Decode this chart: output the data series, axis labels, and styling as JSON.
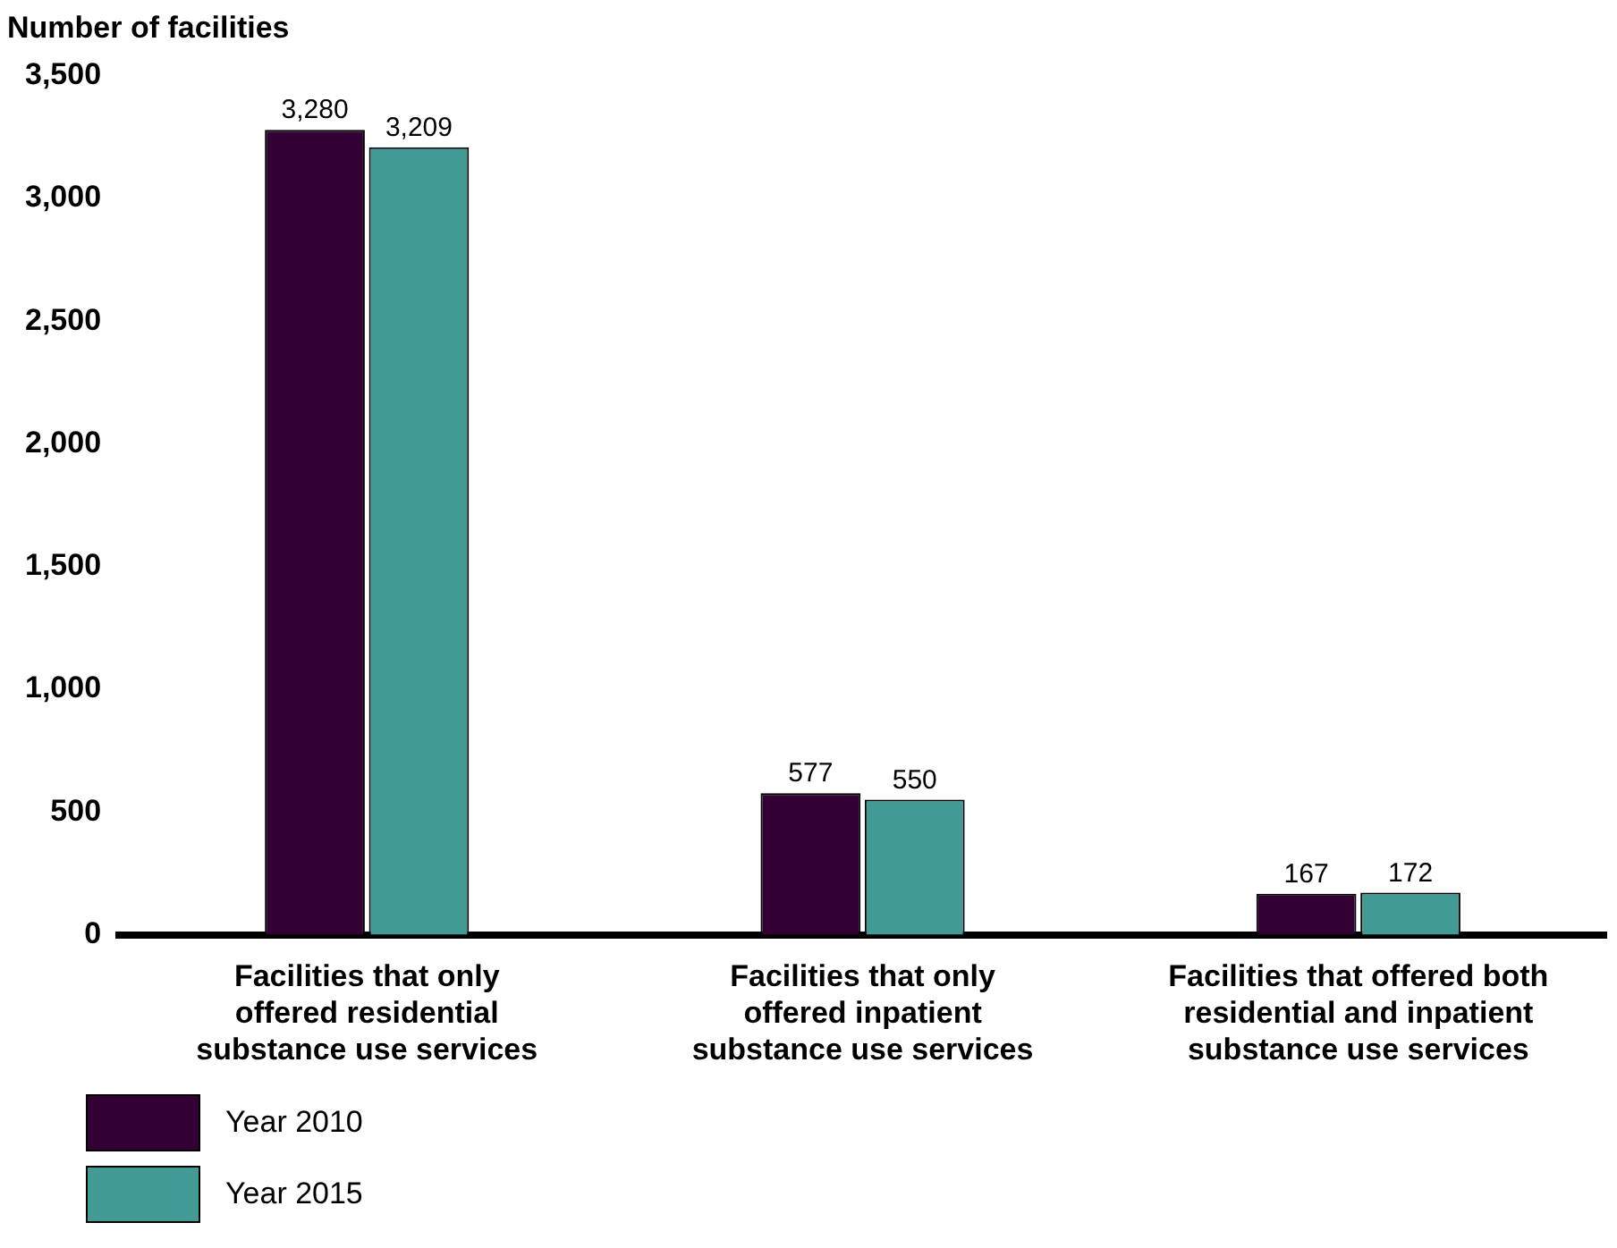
{
  "chart_data": {
    "type": "bar",
    "ylabel": "Number of facilities",
    "categories": [
      "Facilities that only offered residential substance use services",
      "Facilities that only offered inpatient substance use services",
      "Facilities that offered both residential and inpatient substance use services"
    ],
    "series": [
      {
        "name": "Year 2010",
        "color": "#330033",
        "values": [
          3280,
          577,
          167
        ],
        "value_labels": [
          "3,280",
          "577",
          "167"
        ]
      },
      {
        "name": "Year 2015",
        "color": "#419a94",
        "values": [
          3209,
          550,
          172
        ],
        "value_labels": [
          "3,209",
          "550",
          "172"
        ]
      }
    ],
    "ylim": [
      0,
      3500
    ],
    "yticks": [
      0,
      500,
      {
        "value": 1000,
        "label": "1,000"
      },
      {
        "value": 1500,
        "label": "1,500"
      },
      {
        "value": 2000,
        "label": "2,000"
      },
      {
        "value": 2500,
        "label": "2,500"
      },
      {
        "value": 3000,
        "label": "3,000"
      },
      {
        "value": 3500,
        "label": "3,500"
      }
    ],
    "grid": false,
    "legend": "bottom left"
  }
}
